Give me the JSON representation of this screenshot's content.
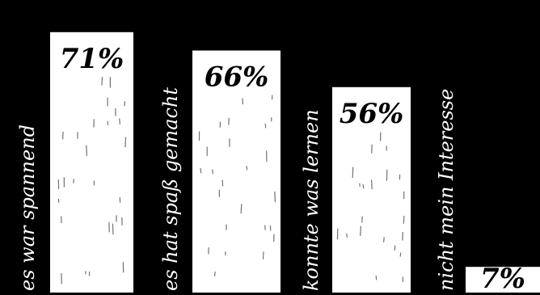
{
  "chart_data": {
    "type": "bar",
    "orientation": "vertical",
    "categories": [
      "es war spannend",
      "es hat spaß gemacht",
      "konnte was lernen",
      "nicht mein Interesse"
    ],
    "values": [
      71,
      66,
      56,
      7
    ],
    "value_labels": [
      "71%",
      "66%",
      "56%",
      "7%"
    ],
    "unit": "%",
    "ylim": [
      0,
      78
    ],
    "grid": false,
    "legend": "none",
    "colors": {
      "background": "#000000",
      "bar": "#ffffff",
      "value_text": "#000000",
      "category_text": "#ffffff"
    }
  }
}
